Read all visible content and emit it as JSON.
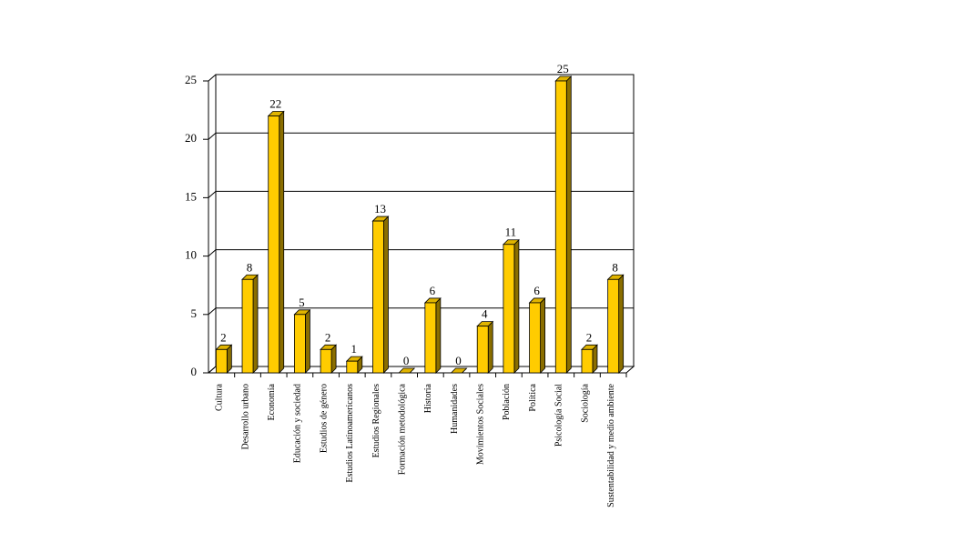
{
  "chart_data": {
    "type": "bar3d",
    "categories": [
      "Cultura",
      "Desarrollo urbano",
      "Economía",
      "Educación y sociedad",
      "Estudios de género",
      "Estudios Latinoamericanos",
      "Estudios Regionales",
      "Formación metodológica",
      "Historia",
      "Humanidades",
      "Movimientos Sociales",
      "Población",
      "Política",
      "Psicología Social",
      "Sociología",
      "Sustentabilidad y medio ambiente"
    ],
    "values": [
      2,
      8,
      22,
      5,
      2,
      1,
      13,
      0,
      6,
      0,
      4,
      11,
      6,
      25,
      2,
      8
    ],
    "color": "#ffcc00",
    "ylim": [
      0,
      25
    ],
    "yticks": [
      0,
      5,
      10,
      15,
      20,
      25
    ],
    "grid": true
  }
}
